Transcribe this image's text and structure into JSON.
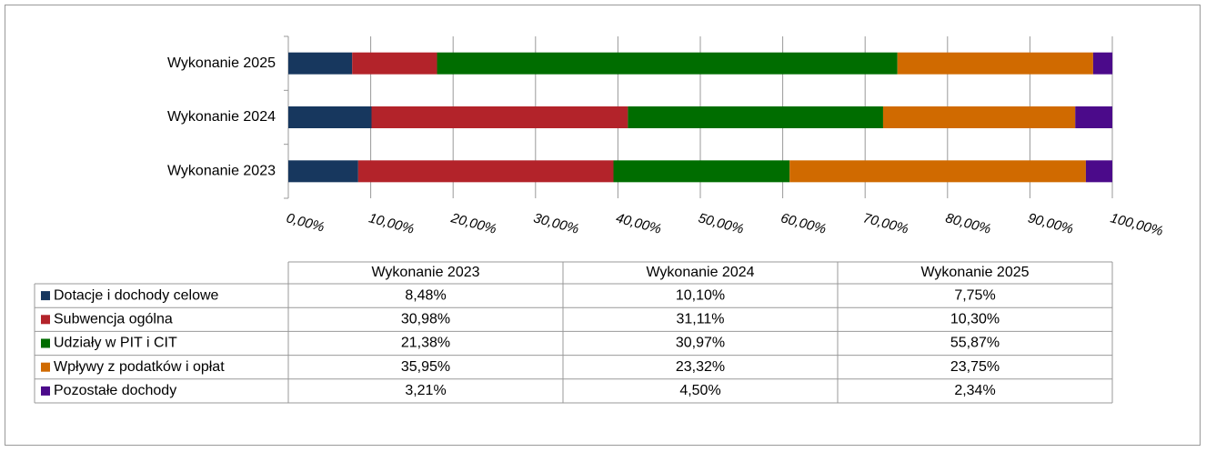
{
  "chart_data": {
    "type": "bar",
    "orientation": "horizontal",
    "stacked": true,
    "categories": [
      "Wykonanie 2023",
      "Wykonanie 2024",
      "Wykonanie 2025"
    ],
    "series": [
      {
        "name": "Dotacje i dochody celowe",
        "color": "#17375e",
        "values": [
          8.48,
          10.1,
          7.75
        ],
        "value_labels": [
          "8,48%",
          "10,10%",
          "7,75%"
        ]
      },
      {
        "name": "Subwencja ogólna",
        "color": "#b3232a",
        "values": [
          30.98,
          31.11,
          10.3
        ],
        "value_labels": [
          "30,98%",
          "31,11%",
          "10,30%"
        ]
      },
      {
        "name": "Udziały w PIT i CIT",
        "color": "#006d00",
        "values": [
          21.38,
          30.97,
          55.87
        ],
        "value_labels": [
          "21,38%",
          "30,97%",
          "55,87%"
        ]
      },
      {
        "name": "Wpływy z podatków i opłat",
        "color": "#d06a00",
        "values": [
          35.95,
          23.32,
          23.75
        ],
        "value_labels": [
          "35,95%",
          "23,32%",
          "23,75%"
        ]
      },
      {
        "name": "Pozostałe dochody",
        "color": "#4b0a8a",
        "values": [
          3.21,
          4.5,
          2.34
        ],
        "value_labels": [
          "3,21%",
          "4,50%",
          "2,34%"
        ]
      }
    ],
    "xlim": [
      0,
      100
    ],
    "xticks": [
      {
        "value": 0,
        "label": "0,00%"
      },
      {
        "value": 10,
        "label": "10,00%"
      },
      {
        "value": 20,
        "label": "20,00%"
      },
      {
        "value": 30,
        "label": "30,00%"
      },
      {
        "value": 40,
        "label": "40,00%"
      },
      {
        "value": 50,
        "label": "50,00%"
      },
      {
        "value": 60,
        "label": "60,00%"
      },
      {
        "value": 70,
        "label": "70,00%"
      },
      {
        "value": 80,
        "label": "80,00%"
      },
      {
        "value": 90,
        "label": "90,00%"
      },
      {
        "value": 100,
        "label": "100,00%"
      }
    ],
    "grid": true,
    "data_table": true
  }
}
